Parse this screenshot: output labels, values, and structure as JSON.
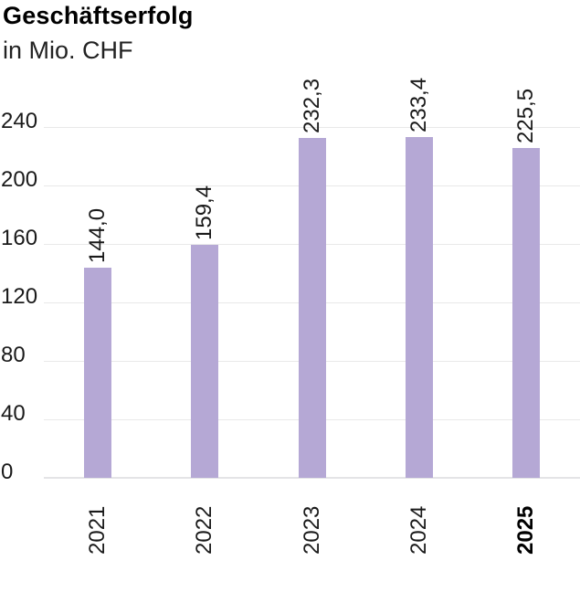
{
  "chart_data": {
    "type": "bar",
    "title": "Geschäftserfolg",
    "subtitle": "in Mio. CHF",
    "categories": [
      "2021",
      "2022",
      "2023",
      "2024",
      "2025"
    ],
    "values": [
      144.0,
      159.4,
      232.3,
      233.4,
      225.5
    ],
    "value_labels": [
      "144,0",
      "159,4",
      "232,3",
      "233,4",
      "225,5"
    ],
    "yticks": [
      0,
      40,
      80,
      120,
      160,
      200,
      240
    ],
    "ylim": [
      0,
      240
    ],
    "xlabel": "",
    "ylabel": "in Mio. CHF",
    "grid": true,
    "legend": false,
    "highlight_last_category": true,
    "bar_color": "#b5a8d5",
    "grid_color": "#e9e9e9",
    "text_color": "#1a1a1a",
    "value_label_rotation_deg": 90,
    "xtick_rotation_deg": 90
  }
}
